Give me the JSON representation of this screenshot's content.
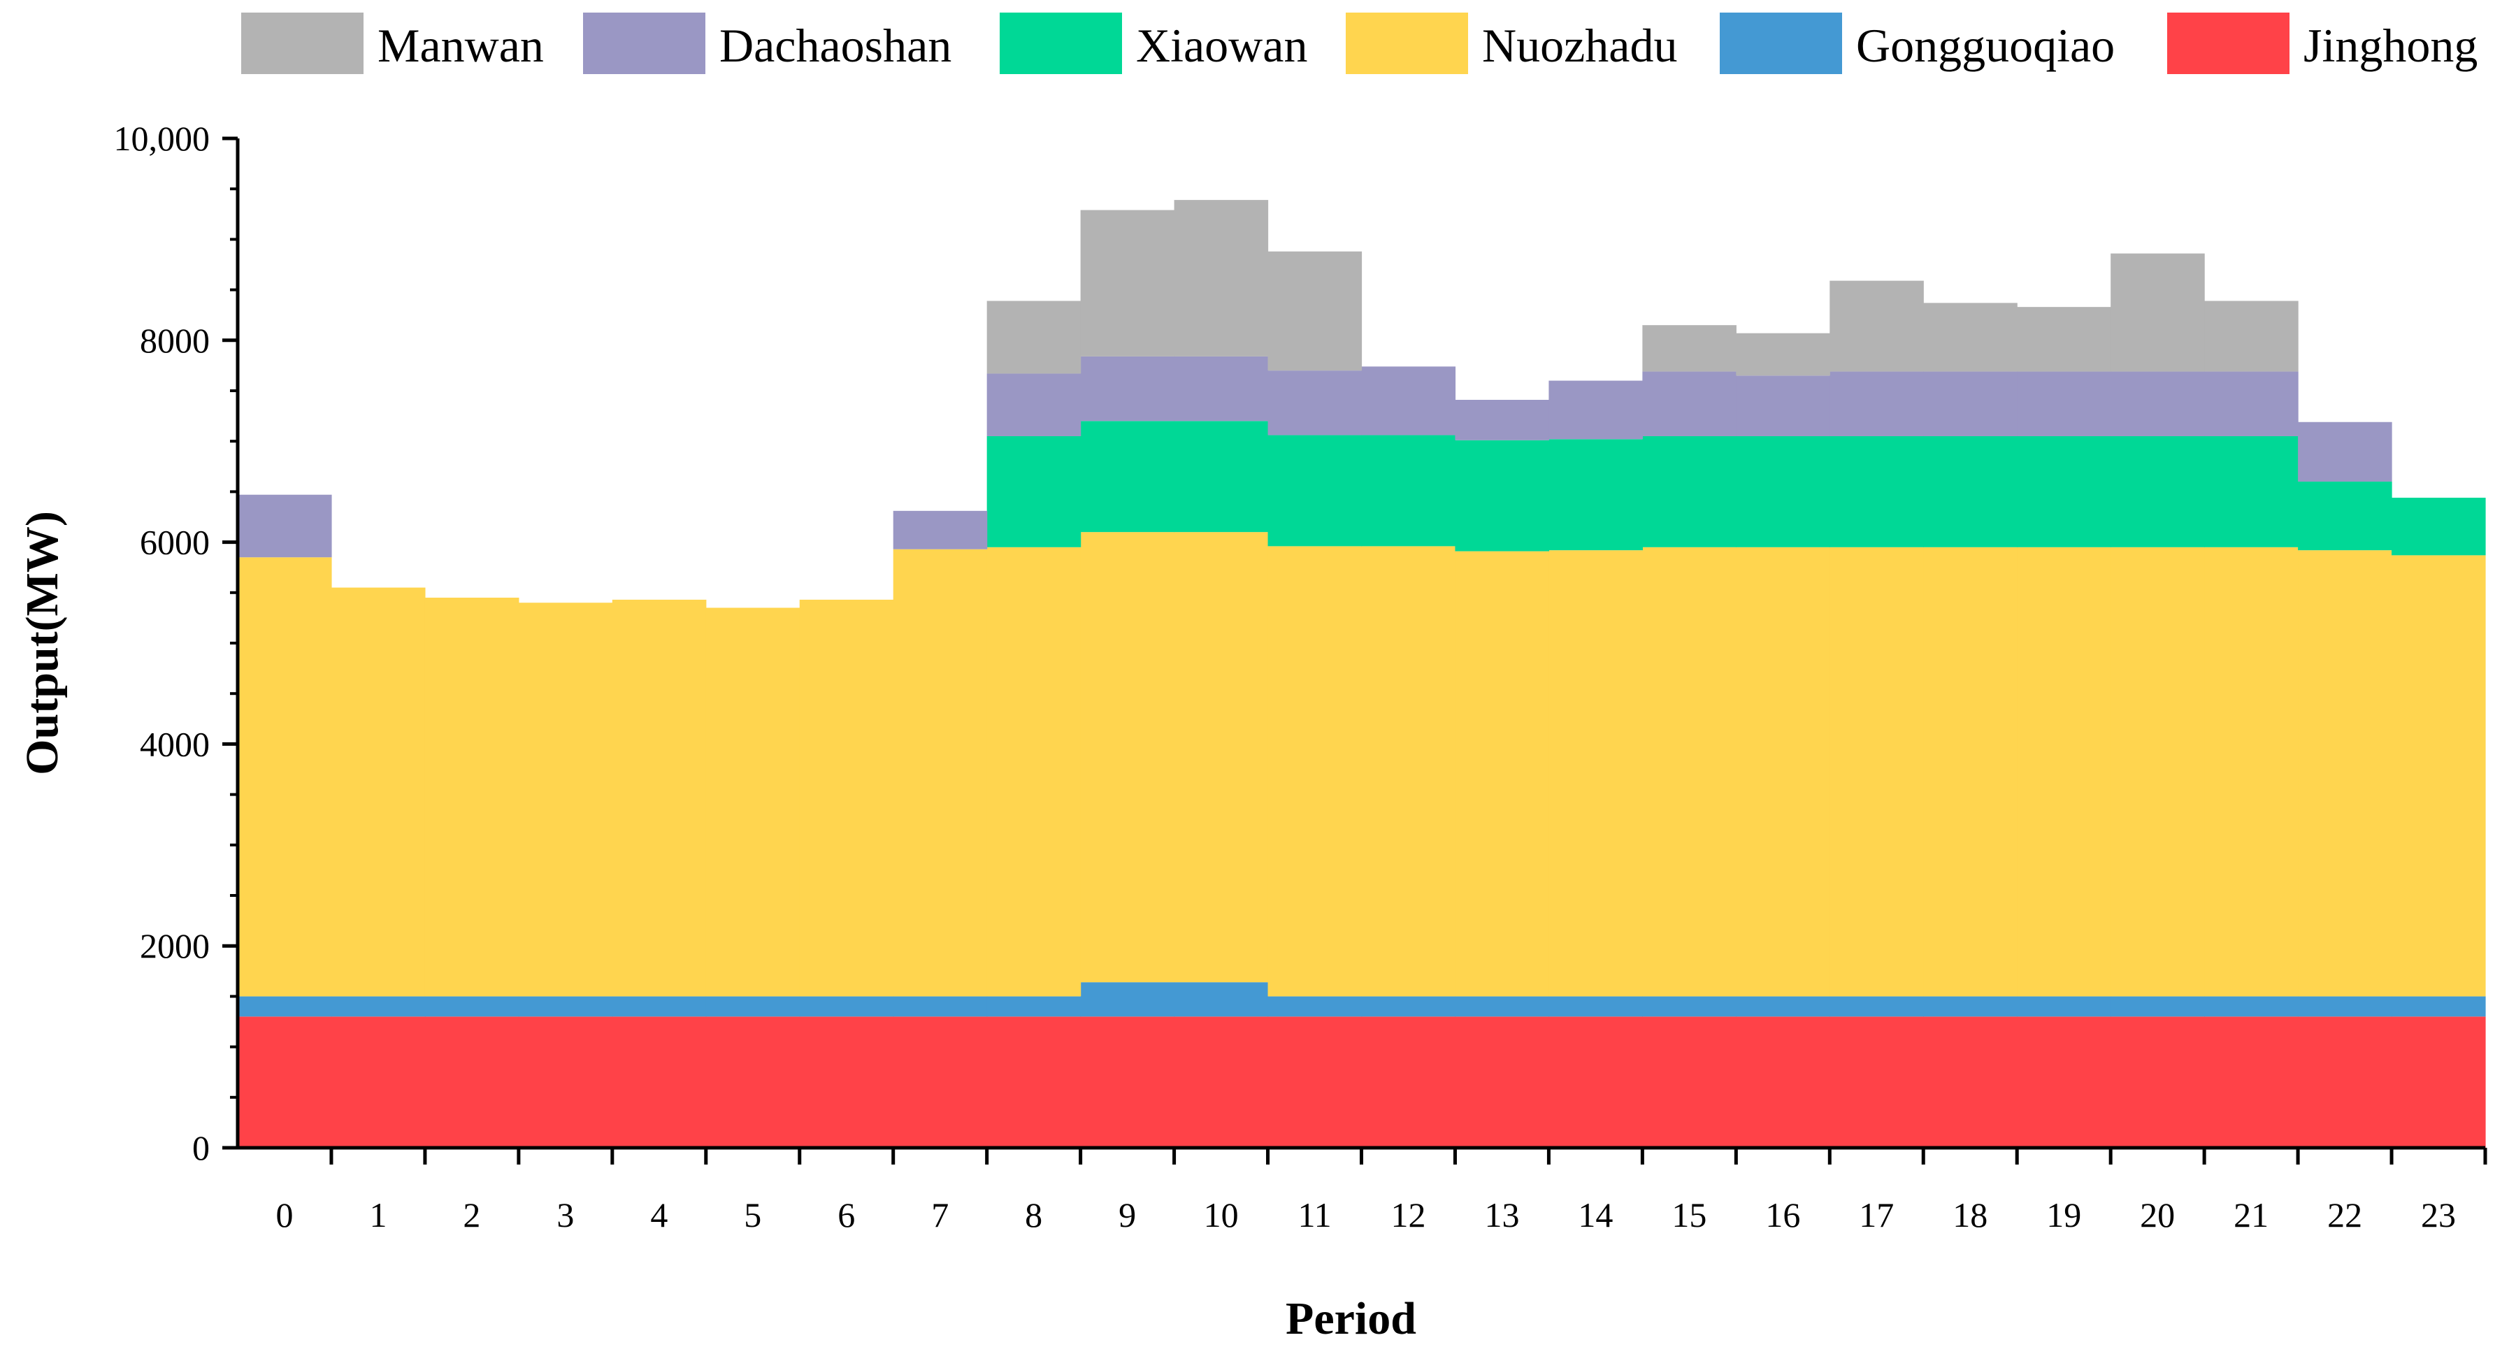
{
  "chart_data": {
    "type": "area",
    "subtype": "stacked-step",
    "title": "",
    "xlabel": "Period",
    "ylabel": "Output(MW)",
    "ylim": [
      0,
      10000
    ],
    "xlim": [
      -0.5,
      23.5
    ],
    "yticks": [
      0,
      2000,
      4000,
      6000,
      8000,
      10000
    ],
    "ytick_labels": [
      "0",
      "2000",
      "4000",
      "6000",
      "8000",
      "10,000"
    ],
    "categories": [
      "0",
      "1",
      "2",
      "3",
      "4",
      "5",
      "6",
      "7",
      "8",
      "9",
      "10",
      "11",
      "12",
      "13",
      "14",
      "15",
      "16",
      "17",
      "18",
      "19",
      "20",
      "21",
      "22",
      "23"
    ],
    "legend_position": "top",
    "legend_order": [
      "Manwan",
      "Dachaoshan",
      "Xiaowan",
      "Nuozhadu",
      "Gongguoqiao",
      "Jinghong"
    ],
    "series": [
      {
        "name": "Jinghong",
        "color": "#FF4248",
        "values": [
          1300,
          1300,
          1300,
          1300,
          1300,
          1300,
          1300,
          1300,
          1300,
          1300,
          1300,
          1300,
          1300,
          1300,
          1300,
          1300,
          1300,
          1300,
          1300,
          1300,
          1300,
          1300,
          1300,
          1300
        ]
      },
      {
        "name": "Gongguoqiao",
        "color": "#4499D3",
        "values": [
          200,
          200,
          200,
          200,
          200,
          200,
          200,
          200,
          200,
          340,
          340,
          200,
          200,
          200,
          200,
          200,
          200,
          200,
          200,
          200,
          200,
          200,
          200,
          200
        ]
      },
      {
        "name": "Nuozhadu",
        "color": "#FFD54F",
        "values": [
          4350,
          4050,
          3950,
          3900,
          3930,
          3850,
          3930,
          4430,
          4450,
          4460,
          4460,
          4460,
          4460,
          4410,
          4420,
          4450,
          4450,
          4450,
          4450,
          4450,
          4450,
          4450,
          4420,
          4370
        ]
      },
      {
        "name": "Xiaowan",
        "color": "#00D896",
        "values": [
          0,
          0,
          0,
          0,
          0,
          0,
          0,
          0,
          1100,
          1100,
          1100,
          1100,
          1100,
          1100,
          1100,
          1100,
          1100,
          1100,
          1100,
          1100,
          1100,
          1100,
          680,
          570
        ]
      },
      {
        "name": "Dachaoshan",
        "color": "#9A97C4",
        "values": [
          620,
          0,
          0,
          0,
          0,
          0,
          0,
          380,
          620,
          640,
          640,
          640,
          680,
          400,
          580,
          640,
          600,
          640,
          640,
          640,
          640,
          640,
          590,
          0
        ]
      },
      {
        "name": "Manwan",
        "color": "#B3B3B3",
        "values": [
          0,
          0,
          0,
          0,
          0,
          0,
          0,
          0,
          720,
          1450,
          1550,
          1180,
          0,
          0,
          0,
          460,
          420,
          900,
          680,
          640,
          1170,
          700,
          0,
          0
        ]
      }
    ]
  }
}
